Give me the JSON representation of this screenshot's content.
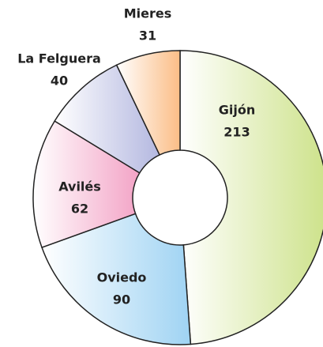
{
  "chart_data": {
    "type": "donut",
    "categories": [
      "Gijón",
      "Oviedo",
      "Avilés",
      "La Felguera",
      "Mieres"
    ],
    "values": [
      213,
      90,
      62,
      40,
      31
    ],
    "colors": [
      "#cde28a",
      "#9fd3f3",
      "#f3a3c6",
      "#b4b8e0",
      "#fbbd86"
    ]
  }
}
